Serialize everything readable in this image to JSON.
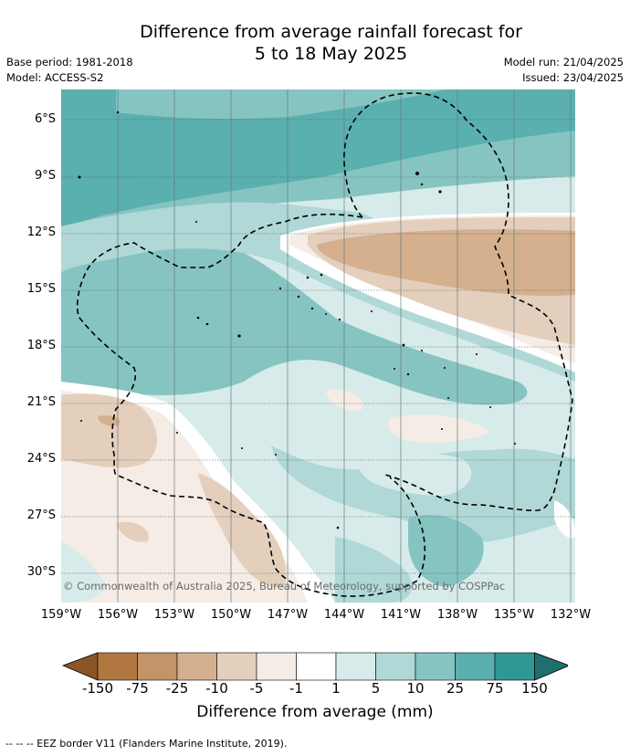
{
  "title": {
    "line1": "Difference from average rainfall forecast for",
    "line2": "5 to 18 May 2025"
  },
  "meta": {
    "base_period": "Base period: 1981-2018",
    "model": "Model: ACCESS-S2",
    "model_run": "Model run: 21/04/2025",
    "issued": "Issued: 23/04/2025"
  },
  "map": {
    "lat_labels": [
      "6°S",
      "9°S",
      "12°S",
      "15°S",
      "18°S",
      "21°S",
      "24°S",
      "27°S",
      "30°S"
    ],
    "lon_labels": [
      "159°W",
      "156°W",
      "153°W",
      "150°W",
      "147°W",
      "144°W",
      "141°W",
      "138°W",
      "135°W",
      "132°W"
    ],
    "copyright": "© Commonwealth of Australia 2025, Bureau of Meteorology, supported by COSPPac"
  },
  "colorbar": {
    "ticks": [
      "-150",
      "-75",
      "-25",
      "-10",
      "-5",
      "-1",
      "1",
      "5",
      "10",
      "25",
      "75",
      "150"
    ],
    "colors": [
      "#8c5526",
      "#b07840",
      "#c29468",
      "#d4b08e",
      "#e4cfbd",
      "#f5ece6",
      "#ffffff",
      "#d7ebea",
      "#afd8d6",
      "#86c4c2",
      "#5ab0ae",
      "#2f9894",
      "#1e706e"
    ],
    "title": "Difference from average (mm)"
  },
  "footer": "--  --  -- EEZ border V11 (Flanders Marine Institute, 2019)."
}
